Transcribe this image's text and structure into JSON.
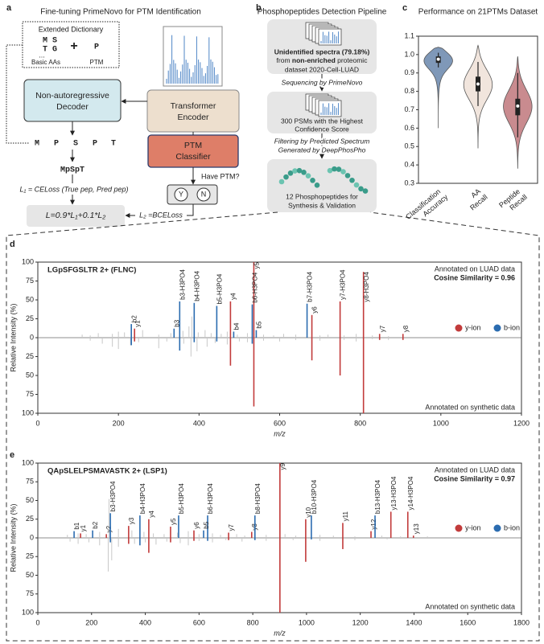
{
  "panel_labels": [
    "a",
    "b",
    "c",
    "d",
    "e"
  ],
  "panel_a": {
    "title": "Fine-tuning PrimeNovo for PTM Identification",
    "dictionary_title": "Extended Dictionary",
    "dictionary_rows": [
      "M S",
      "T G",
      "..."
    ],
    "plus": "+",
    "ptm_letter": "P",
    "basic_aas_label": "Basic AAs",
    "ptm_label": "PTM",
    "decoder": [
      "Non-autoregressive",
      "Decoder"
    ],
    "encoder": [
      "Transformer",
      "Encoder"
    ],
    "classifier": [
      "PTM",
      "Classifier"
    ],
    "have_ptm": "Have PTM?",
    "yes": "Y",
    "no": "N",
    "decoded_tokens": [
      "M",
      "P",
      "S",
      "P",
      "T"
    ],
    "peptide": "MpSpT",
    "l1": "L₁ = CELoss (True pep, Pred pep)",
    "l2": "L₂ =BCELoss",
    "loss": "L=0.9*L₁+0.1*L₂"
  },
  "panel_b": {
    "title": "Phosphopeptides Detection Pipeline",
    "step1": [
      "Unidentified spectra (79.18%)",
      "from ",
      "non-enriched",
      " proteomic",
      "dataset 2020-Cell-LUAD"
    ],
    "arrow1": "Sequencing by PrimeNovo",
    "step2": [
      "300 PSMs with the Highest",
      "Confidence Score"
    ],
    "arrow2": [
      "Filtering by Predicted Spectrum",
      "Generated by DeepPhosPho"
    ],
    "step3": [
      "12 Phosphopeptides for",
      "Synthesis & Validation"
    ]
  },
  "chart_data": [
    {
      "type": "violin",
      "title": "Performance on 21PTMs Dataset",
      "categories": [
        "Classification Accuracy",
        "AA Recall",
        "Peptide Recall"
      ],
      "colors": [
        "#7f98b8",
        "#f1e5dd",
        "#c98b8f"
      ],
      "mins": [
        0.6,
        0.49,
        0.38
      ],
      "whisker_low": [
        0.93,
        0.72,
        0.55
      ],
      "q1": [
        0.955,
        0.8,
        0.67
      ],
      "medians": [
        0.975,
        0.84,
        0.72
      ],
      "q3": [
        0.99,
        0.88,
        0.76
      ],
      "whisker_high": [
        1.01,
        0.96,
        0.9
      ],
      "maxs": [
        1.04,
        1.05,
        0.99
      ],
      "ylim": [
        0.3,
        1.1
      ],
      "yticks": [
        0.3,
        0.4,
        0.5,
        0.6,
        0.7,
        0.8,
        0.9,
        {
          "value": 1,
          "label": "1.0"
        },
        1.1
      ]
    },
    {
      "type": "spectrum",
      "title": "LGpSFGSLTR 2+ (FLNC)",
      "note_top": "Annotated on LUAD data",
      "similarity": "Cosine Similarity = 0.96",
      "note_bottom": "Annotated on synthetic data",
      "xlabel": "m/z",
      "ylabel": "Relative Intensity (%)",
      "xlim": [
        0,
        1200
      ],
      "xticks": [
        0,
        200,
        400,
        600,
        800,
        1000,
        1200
      ],
      "ylim": [
        -100,
        100
      ],
      "yticks": [
        {
          "value": -100,
          "label": "100"
        },
        {
          "value": -75,
          "label": "75"
        },
        {
          "value": -50,
          "label": "50"
        },
        {
          "value": -25,
          "label": "25"
        },
        0,
        25,
        50,
        75,
        100
      ],
      "series": [
        {
          "name": "y-ion",
          "color": "#c23b3b",
          "x": [
            240,
            478,
            536,
            680,
            750,
            808,
            848,
            906
          ],
          "values": [
            12,
            48,
            100,
            30,
            48,
            87,
            5,
            5
          ],
          "labels": [
            "y1",
            "y4",
            "y5",
            "y6",
            "y7-H3PO4",
            "y8-H3PO4",
            "y7",
            "y8"
          ]
        },
        {
          "name": "b-ion",
          "color": "#2b6cb0",
          "x": [
            232,
            338,
            352,
            388,
            444,
            486,
            532,
            542,
            668
          ],
          "values": [
            18,
            12,
            48,
            46,
            42,
            8,
            44,
            10,
            45
          ],
          "labels": [
            "b2",
            "b3",
            "b3-H3PO4",
            "b4-H3PO4",
            "b5-H3PO4",
            "b4",
            "b6-H3PO4",
            "b5",
            "b7-H3PO4"
          ]
        }
      ],
      "mirror_series": [
        {
          "color": "#c23b3b",
          "x": [
            240,
            478,
            536,
            680,
            750,
            808,
            848,
            906
          ],
          "values": [
            -5,
            -37,
            -91,
            -30,
            -50,
            -100,
            -3,
            -3
          ]
        },
        {
          "color": "#2b6cb0",
          "x": [
            232,
            352,
            388,
            444,
            532
          ],
          "values": [
            -10,
            -17,
            -6,
            -5,
            -8
          ]
        }
      ],
      "background": {
        "color": "#c8c8c8",
        "x": [
          110,
          130,
          150,
          185,
          200,
          215,
          260,
          300,
          330,
          360,
          375,
          382,
          398,
          415,
          430,
          455,
          470,
          495,
          520,
          560,
          585,
          610,
          640,
          700,
          720,
          760,
          790,
          830,
          870,
          130,
          160,
          185,
          200,
          230,
          250,
          300,
          320,
          362,
          380,
          395,
          420,
          440,
          470,
          500,
          520,
          560,
          600,
          640,
          700,
          760,
          790,
          830,
          870
        ],
        "values": [
          4,
          3,
          6,
          5,
          8,
          7,
          10,
          4,
          6,
          9,
          15,
          28,
          7,
          10,
          6,
          5,
          8,
          4,
          6,
          4,
          3,
          5,
          4,
          3,
          4,
          3,
          5,
          3,
          2,
          -4,
          -8,
          -12,
          -15,
          -10,
          -6,
          -14,
          -5,
          -8,
          -25,
          -18,
          -12,
          -7,
          -9,
          -5,
          -6,
          -4,
          -5,
          -3,
          -4,
          -3,
          -5,
          -2,
          -3
        ]
      }
    },
    {
      "type": "spectrum",
      "title": "QApSLELPSMAVASTK 2+ (LSP1)",
      "note_top": "Annotated on LUAD data",
      "similarity": "Cosine Similarity = 0.97",
      "note_bottom": "Annotated on synthetic data",
      "xlabel": "m/z",
      "ylabel": "Relative Intensity (%)",
      "xlim": [
        0,
        1800
      ],
      "xticks": [
        0,
        200,
        400,
        600,
        800,
        1000,
        1200,
        1400,
        1600,
        1800
      ],
      "ylim": [
        -100,
        100
      ],
      "yticks": [
        {
          "value": -100,
          "label": "100"
        },
        {
          "value": -75,
          "label": "75"
        },
        {
          "value": -50,
          "label": "50"
        },
        {
          "value": -25,
          "label": "25"
        },
        0,
        25,
        50,
        75,
        100
      ],
      "series": [
        {
          "name": "y-ion",
          "color": "#c23b3b",
          "x": [
            159,
            255,
            338,
            413,
            494,
            581,
            710,
            796,
            901,
            997,
            1135,
            1240,
            1314,
            1377,
            1398
          ],
          "values": [
            6,
            5,
            16,
            25,
            15,
            10,
            7,
            8,
            100,
            25,
            20,
            9,
            35,
            35,
            3
          ],
          "labels": [
            "y1",
            "y2",
            "y3",
            "y4",
            "y5",
            "y6",
            "y7",
            "y8",
            "y9",
            "y10",
            "y11",
            "y12",
            "y13-H3PO4",
            "y14-H3PO4",
            "y13"
          ]
        },
        {
          "name": "b-ion",
          "color": "#2b6cb0",
          "x": [
            135,
            204,
            270,
            380,
            524,
            617,
            632,
            808,
            1018,
            1255
          ],
          "values": [
            9,
            10,
            33,
            30,
            30,
            10,
            30,
            30,
            30,
            30
          ],
          "labels": [
            "b1",
            "b2",
            "b3-H3PO4",
            "b4-H3PO4",
            "b5-H3PO4",
            "b5",
            "b6-H3PO4",
            "b8-H3PO4",
            "b10-H3PO4",
            "b13-H3PO4"
          ]
        }
      ],
      "mirror_series": [
        {
          "color": "#c23b3b",
          "x": [
            338,
            413,
            494,
            581,
            710,
            901,
            997,
            1135
          ],
          "values": [
            -8,
            -20,
            -6,
            -4,
            -3,
            -100,
            -32,
            -15
          ]
        },
        {
          "color": "#2b6cb0",
          "x": [
            270,
            380,
            632,
            808,
            1018
          ],
          "values": [
            -6,
            -10,
            -4,
            -3,
            -2
          ]
        }
      ],
      "background": {
        "color": "#c8c8c8",
        "x": [
          110,
          150,
          180,
          230,
          265,
          300,
          350,
          395,
          430,
          470,
          520,
          560,
          600,
          650,
          680,
          740,
          770,
          850,
          920,
          960,
          1050,
          1100,
          1180,
          1280,
          1350,
          1450,
          120,
          150,
          190,
          230,
          262,
          275,
          300,
          360,
          400,
          440,
          480,
          530,
          560,
          600,
          650,
          700,
          760,
          850,
          950,
          1050,
          1180,
          1300
        ],
        "values": [
          4,
          6,
          5,
          8,
          52,
          12,
          10,
          8,
          6,
          5,
          7,
          9,
          5,
          6,
          4,
          5,
          3,
          4,
          5,
          3,
          4,
          3,
          2,
          3,
          2,
          2,
          -5,
          -8,
          -6,
          -10,
          -45,
          -30,
          -12,
          -8,
          -6,
          -9,
          -5,
          -7,
          -10,
          -4,
          -6,
          -3,
          -5,
          -4,
          -3,
          -4,
          -3,
          -2
        ]
      }
    }
  ]
}
